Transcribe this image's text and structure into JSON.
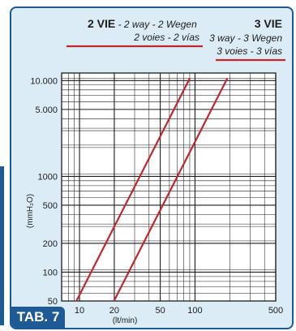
{
  "table_label": "TAB. 7",
  "chart_data": {
    "type": "line",
    "x_scale": "log",
    "y_scale": "log",
    "xlim": [
      7,
      500
    ],
    "ylim": [
      50,
      12000
    ],
    "grid": true,
    "xlabel": "(lt/min)",
    "ylabel": "(mmH₂O)",
    "x_ticks": [
      {
        "value": 10,
        "label": "10"
      },
      {
        "value": 20,
        "label": "20"
      },
      {
        "value": 50,
        "label": "50"
      },
      {
        "value": 100,
        "label": "100"
      },
      {
        "value": 500,
        "label": "500"
      }
    ],
    "y_ticks": [
      {
        "value": 10000,
        "label": "10.000"
      },
      {
        "value": 5000,
        "label": "5.000"
      },
      {
        "value": 1000,
        "label": "1000"
      },
      {
        "value": 500,
        "label": "500"
      },
      {
        "value": 200,
        "label": "200"
      },
      {
        "value": 100,
        "label": "100"
      },
      {
        "value": 50,
        "label": "50"
      }
    ],
    "series": [
      {
        "name": "2 VIE",
        "name_lines": [
          "2 way - 2 Wegen",
          "2 voies - 2 vías"
        ],
        "color": "#c0282d",
        "x": [
          9,
          90
        ],
        "y": [
          45,
          10500
        ]
      },
      {
        "name": "3 VIE",
        "name_lines": [
          "3 way - 3 Wegen",
          "3 voies - 3 vías"
        ],
        "color": "#c0282d",
        "x": [
          19,
          190
        ],
        "y": [
          45,
          10500
        ]
      }
    ]
  }
}
